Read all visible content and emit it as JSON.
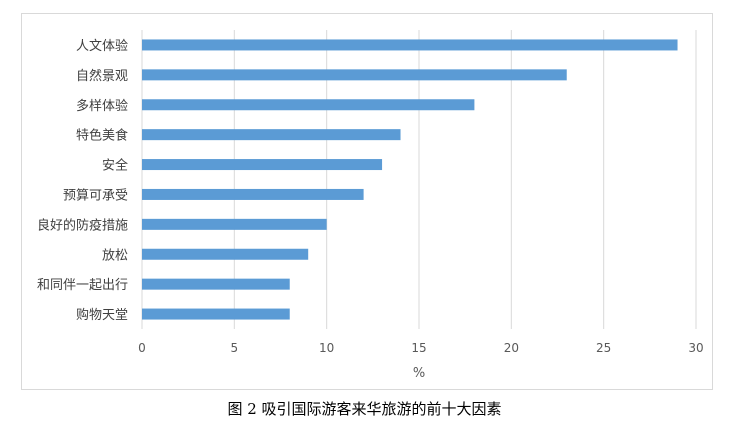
{
  "caption": "图 2  吸引国际游客来华旅游的前十大因素",
  "chart_data": {
    "type": "bar",
    "orientation": "horizontal",
    "categories": [
      "人文体验",
      "自然景观",
      "多样体验",
      "特色美食",
      "安全",
      "预算可承受",
      "良好的防疫措施",
      "放松",
      "和同伴一起出行",
      "购物天堂"
    ],
    "values": [
      29,
      23,
      18,
      14,
      13,
      12,
      10,
      9,
      8,
      8
    ],
    "xlabel": "%",
    "xlim": [
      0,
      30
    ],
    "xticks": [
      0,
      5,
      10,
      15,
      20,
      25,
      30
    ],
    "grid": "vertical",
    "bar_color": "#5b9bd5",
    "gridline_color": "#d9d9d9"
  }
}
